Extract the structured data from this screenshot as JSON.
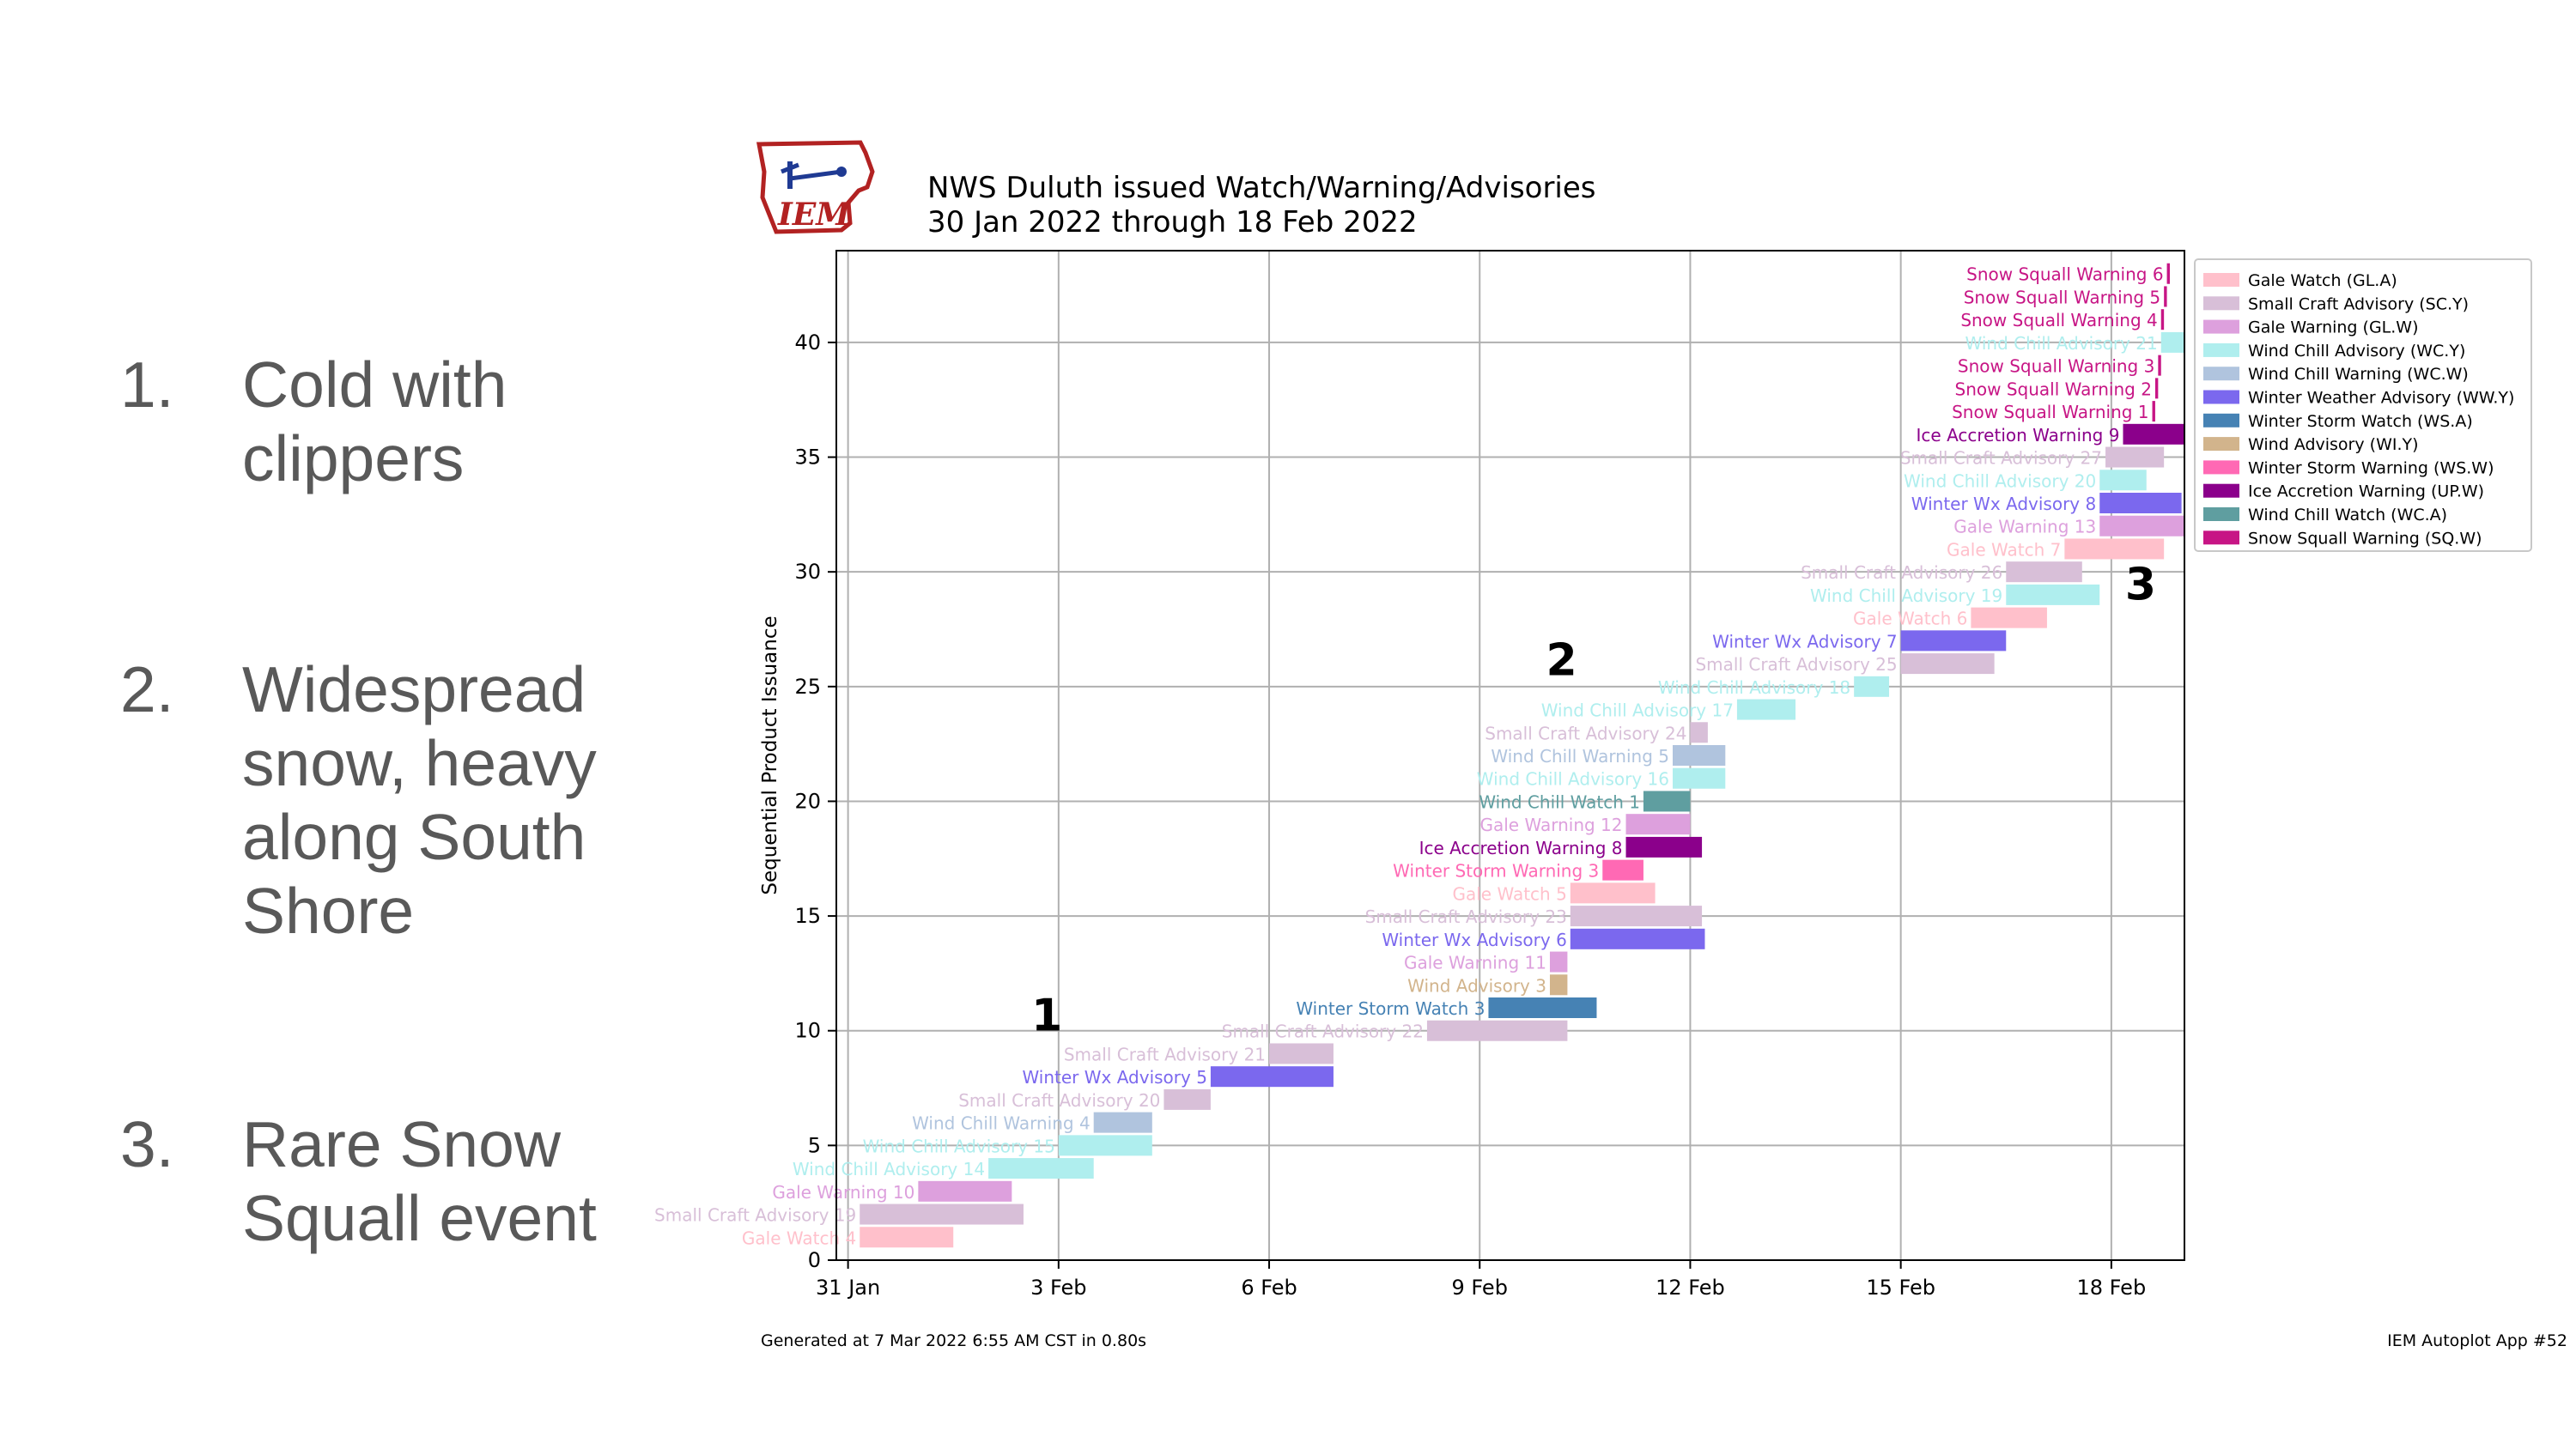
{
  "slide": {
    "points": [
      {
        "num": "1.",
        "text": "Cold with clippers"
      },
      {
        "num": "2.",
        "text": "Widespread snow, heavy along South Shore"
      },
      {
        "num": "3.",
        "text": "Rare Snow Squall event"
      }
    ]
  },
  "chart_data": {
    "type": "timeline",
    "title": "NWS Duluth issued Watch/Warning/Advisories",
    "subtitle": "30 Jan 2022 through 18 Feb 2022",
    "logo_text": "IEM",
    "ylabel": "Sequential Product Issuance",
    "xlabel": "",
    "xlim": [
      "2022-01-30T20:00",
      "2022-02-19T01:00"
    ],
    "ylim": [
      0,
      44
    ],
    "x_ticks": [
      {
        "date": "2022-01-31",
        "label": "31 Jan"
      },
      {
        "date": "2022-02-03",
        "label": "3 Feb"
      },
      {
        "date": "2022-02-06",
        "label": "6 Feb"
      },
      {
        "date": "2022-02-09",
        "label": "9 Feb"
      },
      {
        "date": "2022-02-12",
        "label": "12 Feb"
      },
      {
        "date": "2022-02-15",
        "label": "15 Feb"
      },
      {
        "date": "2022-02-18",
        "label": "18 Feb"
      }
    ],
    "y_ticks": [
      0,
      5,
      10,
      15,
      20,
      25,
      30,
      35,
      40
    ],
    "grid": true,
    "legend_position": "upper-right-outside",
    "legend": [
      {
        "code": "GL.A",
        "label": "Gale Watch (GL.A)",
        "color": "#ffc0cb"
      },
      {
        "code": "SC.Y",
        "label": "Small Craft Advisory (SC.Y)",
        "color": "#d8bfd8"
      },
      {
        "code": "GL.W",
        "label": "Gale Warning (GL.W)",
        "color": "#dda0dd"
      },
      {
        "code": "WC.Y",
        "label": "Wind Chill Advisory (WC.Y)",
        "color": "#afeeee"
      },
      {
        "code": "WC.W",
        "label": "Wind Chill Warning (WC.W)",
        "color": "#b0c4de"
      },
      {
        "code": "WW.Y",
        "label": "Winter Weather Advisory (WW.Y)",
        "color": "#7b68ee"
      },
      {
        "code": "WS.A",
        "label": "Winter Storm Watch (WS.A)",
        "color": "#4682b4"
      },
      {
        "code": "WI.Y",
        "label": "Wind Advisory (WI.Y)",
        "color": "#d2b48c"
      },
      {
        "code": "WS.W",
        "label": "Winter Storm Warning (WS.W)",
        "color": "#ff69b4"
      },
      {
        "code": "UP.W",
        "label": "Ice Accretion Warning (UP.W)",
        "color": "#8b008b"
      },
      {
        "code": "WC.A",
        "label": "Wind Chill Watch (WC.A)",
        "color": "#5f9ea0"
      },
      {
        "code": "SQ.W",
        "label": "Snow Squall Warning (SQ.W)",
        "color": "#c71585"
      }
    ],
    "events": [
      {
        "y": 1,
        "code": "GL.A",
        "label": "Gale Watch 4",
        "start": "2022-01-31T04:00",
        "end": "2022-02-01T12:00"
      },
      {
        "y": 2,
        "code": "SC.Y",
        "label": "Small Craft Advisory 19",
        "start": "2022-01-31T04:00",
        "end": "2022-02-02T12:00"
      },
      {
        "y": 3,
        "code": "GL.W",
        "label": "Gale Warning 10",
        "start": "2022-02-01T00:00",
        "end": "2022-02-02T08:00"
      },
      {
        "y": 4,
        "code": "WC.Y",
        "label": "Wind Chill Advisory 14",
        "start": "2022-02-02T00:00",
        "end": "2022-02-03T12:00"
      },
      {
        "y": 5,
        "code": "WC.Y",
        "label": "Wind Chill Advisory 15",
        "start": "2022-02-03T00:00",
        "end": "2022-02-04T08:00"
      },
      {
        "y": 6,
        "code": "WC.W",
        "label": "Wind Chill Warning 4",
        "start": "2022-02-03T12:00",
        "end": "2022-02-04T08:00"
      },
      {
        "y": 7,
        "code": "SC.Y",
        "label": "Small Craft Advisory 20",
        "start": "2022-02-04T12:00",
        "end": "2022-02-05T04:00"
      },
      {
        "y": 8,
        "code": "WW.Y",
        "label": "Winter Wx Advisory 5",
        "start": "2022-02-05T04:00",
        "end": "2022-02-06T22:00"
      },
      {
        "y": 9,
        "code": "SC.Y",
        "label": "Small Craft Advisory 21",
        "start": "2022-02-06T00:00",
        "end": "2022-02-06T22:00"
      },
      {
        "y": 10,
        "code": "SC.Y",
        "label": "Small Craft Advisory 22",
        "start": "2022-02-08T06:00",
        "end": "2022-02-10T06:00"
      },
      {
        "y": 11,
        "code": "WS.A",
        "label": "Winter Storm Watch 3",
        "start": "2022-02-09T03:00",
        "end": "2022-02-10T16:00"
      },
      {
        "y": 12,
        "code": "WI.Y",
        "label": "Wind Advisory 3",
        "start": "2022-02-10T00:00",
        "end": "2022-02-10T06:00"
      },
      {
        "y": 13,
        "code": "GL.W",
        "label": "Gale Warning 11",
        "start": "2022-02-10T00:00",
        "end": "2022-02-10T06:00"
      },
      {
        "y": 14,
        "code": "WW.Y",
        "label": "Winter Wx Advisory 6",
        "start": "2022-02-10T07:00",
        "end": "2022-02-12T05:00"
      },
      {
        "y": 15,
        "code": "SC.Y",
        "label": "Small Craft Advisory 23",
        "start": "2022-02-10T07:00",
        "end": "2022-02-12T04:00"
      },
      {
        "y": 16,
        "code": "GL.A",
        "label": "Gale Watch 5",
        "start": "2022-02-10T07:00",
        "end": "2022-02-11T12:00"
      },
      {
        "y": 17,
        "code": "WS.W",
        "label": "Winter Storm Warning 3",
        "start": "2022-02-10T18:00",
        "end": "2022-02-11T08:00"
      },
      {
        "y": 18,
        "code": "UP.W",
        "label": "Ice Accretion Warning 8",
        "start": "2022-02-11T02:00",
        "end": "2022-02-12T04:00"
      },
      {
        "y": 19,
        "code": "GL.W",
        "label": "Gale Warning 12",
        "start": "2022-02-11T02:00",
        "end": "2022-02-12T00:00"
      },
      {
        "y": 20,
        "code": "WC.A",
        "label": "Wind Chill Watch 1",
        "start": "2022-02-11T08:00",
        "end": "2022-02-12T00:00"
      },
      {
        "y": 21,
        "code": "WC.Y",
        "label": "Wind Chill Advisory 16",
        "start": "2022-02-11T18:00",
        "end": "2022-02-12T12:00"
      },
      {
        "y": 22,
        "code": "WC.W",
        "label": "Wind Chill Warning 5",
        "start": "2022-02-11T18:00",
        "end": "2022-02-12T12:00"
      },
      {
        "y": 23,
        "code": "SC.Y",
        "label": "Small Craft Advisory 24",
        "start": "2022-02-12T00:00",
        "end": "2022-02-12T06:00"
      },
      {
        "y": 24,
        "code": "WC.Y",
        "label": "Wind Chill Advisory 17",
        "start": "2022-02-12T16:00",
        "end": "2022-02-13T12:00"
      },
      {
        "y": 25,
        "code": "WC.Y",
        "label": "Wind Chill Advisory 18",
        "start": "2022-02-14T08:00",
        "end": "2022-02-14T20:00"
      },
      {
        "y": 26,
        "code": "SC.Y",
        "label": "Small Craft Advisory 25",
        "start": "2022-02-15T00:00",
        "end": "2022-02-16T08:00"
      },
      {
        "y": 27,
        "code": "WW.Y",
        "label": "Winter Wx Advisory 7",
        "start": "2022-02-15T00:00",
        "end": "2022-02-16T12:00"
      },
      {
        "y": 28,
        "code": "GL.A",
        "label": "Gale Watch 6",
        "start": "2022-02-16T00:00",
        "end": "2022-02-17T02:00"
      },
      {
        "y": 29,
        "code": "WC.Y",
        "label": "Wind Chill Advisory 19",
        "start": "2022-02-16T12:00",
        "end": "2022-02-17T20:00"
      },
      {
        "y": 30,
        "code": "SC.Y",
        "label": "Small Craft Advisory 26",
        "start": "2022-02-16T12:00",
        "end": "2022-02-17T14:00"
      },
      {
        "y": 31,
        "code": "GL.A",
        "label": "Gale Watch 7",
        "start": "2022-02-17T08:00",
        "end": "2022-02-18T18:00"
      },
      {
        "y": 32,
        "code": "GL.W",
        "label": "Gale Warning 13",
        "start": "2022-02-17T20:00",
        "end": "2022-02-19T01:00"
      },
      {
        "y": 33,
        "code": "WW.Y",
        "label": "Winter Wx Advisory 8",
        "start": "2022-02-17T20:00",
        "end": "2022-02-19T00:00"
      },
      {
        "y": 34,
        "code": "WC.Y",
        "label": "Wind Chill Advisory 20",
        "start": "2022-02-17T20:00",
        "end": "2022-02-18T12:00"
      },
      {
        "y": 35,
        "code": "SC.Y",
        "label": "Small Craft Advisory 27",
        "start": "2022-02-17T22:00",
        "end": "2022-02-18T18:00"
      },
      {
        "y": 36,
        "code": "UP.W",
        "label": "Ice Accretion Warning 9",
        "start": "2022-02-18T04:00",
        "end": "2022-02-19T01:00"
      },
      {
        "y": 37,
        "code": "SQ.W",
        "label": "Snow Squall Warning 1",
        "start": "2022-02-18T14:00",
        "end": "2022-02-18T15:00"
      },
      {
        "y": 38,
        "code": "SQ.W",
        "label": "Snow Squall Warning 2",
        "start": "2022-02-18T15:00",
        "end": "2022-02-18T16:00"
      },
      {
        "y": 39,
        "code": "SQ.W",
        "label": "Snow Squall Warning 3",
        "start": "2022-02-18T16:00",
        "end": "2022-02-18T17:00"
      },
      {
        "y": 40,
        "code": "WC.Y",
        "label": "Wind Chill Advisory 21",
        "start": "2022-02-18T17:00",
        "end": "2022-02-19T01:00"
      },
      {
        "y": 41,
        "code": "SQ.W",
        "label": "Snow Squall Warning 4",
        "start": "2022-02-18T17:00",
        "end": "2022-02-18T18:00"
      },
      {
        "y": 42,
        "code": "SQ.W",
        "label": "Snow Squall Warning 5",
        "start": "2022-02-18T18:00",
        "end": "2022-02-18T19:00"
      },
      {
        "y": 43,
        "code": "SQ.W",
        "label": "Snow Squall Warning 6",
        "start": "2022-02-18T19:00",
        "end": "2022-02-18T20:00"
      }
    ],
    "annotations": [
      {
        "text": "1",
        "date": "2022-02-02T20:00",
        "y": 10
      },
      {
        "text": "2",
        "date": "2022-02-10T04:00",
        "y": 25.5
      },
      {
        "text": "3",
        "date": "2022-02-18T10:00",
        "y": 28.8
      }
    ],
    "footer_left": "Generated at 7 Mar 2022 6:55 AM CST in 0.80s",
    "footer_right": "IEM Autoplot App #52"
  }
}
